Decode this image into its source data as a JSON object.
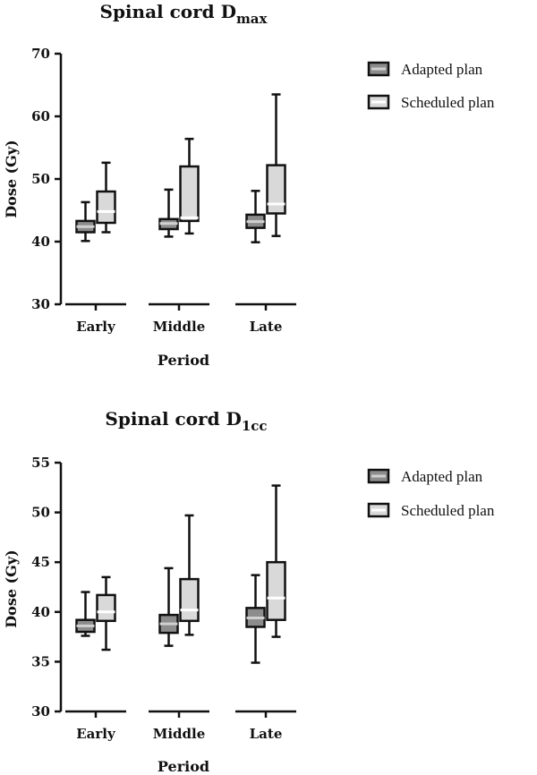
{
  "colors": {
    "adapted_fill": "#8c8c8c",
    "scheduled_fill": "#d9d9d9",
    "stroke": "#111111"
  },
  "chart_data": [
    {
      "type": "box",
      "title": "Spinal cord D",
      "title_sub": "max",
      "xlabel": "Period",
      "ylabel": "Dose (Gy)",
      "ylim": [
        30,
        70
      ],
      "yticks": [
        "30",
        "40",
        "50",
        "60",
        "70"
      ],
      "categories": [
        "Early",
        "Middle",
        "Late"
      ],
      "series": [
        {
          "name": "Adapted plan",
          "boxes": [
            {
              "min": 40.1,
              "q1": 41.5,
              "median": 42.4,
              "q3": 43.3,
              "max": 46.3
            },
            {
              "min": 40.8,
              "q1": 42.0,
              "median": 42.9,
              "q3": 43.6,
              "max": 48.3
            },
            {
              "min": 39.9,
              "q1": 42.2,
              "median": 43.2,
              "q3": 44.3,
              "max": 48.1
            }
          ]
        },
        {
          "name": "Scheduled plan",
          "boxes": [
            {
              "min": 41.5,
              "q1": 43.0,
              "median": 44.8,
              "q3": 48.0,
              "max": 52.6
            },
            {
              "min": 41.3,
              "q1": 43.3,
              "median": 43.8,
              "q3": 52.0,
              "max": 56.4
            },
            {
              "min": 40.9,
              "q1": 44.5,
              "median": 46.0,
              "q3": 52.2,
              "max": 63.5
            }
          ]
        }
      ]
    },
    {
      "type": "box",
      "title": "Spinal cord D",
      "title_sub": "1cc",
      "xlabel": "Period",
      "ylabel": "Dose (Gy)",
      "ylim": [
        30,
        55
      ],
      "yticks": [
        "30",
        "35",
        "40",
        "45",
        "50",
        "55"
      ],
      "categories": [
        "Early",
        "Middle",
        "Late"
      ],
      "series": [
        {
          "name": "Adapted plan",
          "boxes": [
            {
              "min": 37.6,
              "q1": 38.0,
              "median": 38.6,
              "q3": 39.2,
              "max": 42.0
            },
            {
              "min": 36.6,
              "q1": 37.9,
              "median": 38.8,
              "q3": 39.7,
              "max": 44.4
            },
            {
              "min": 34.9,
              "q1": 38.5,
              "median": 39.4,
              "q3": 40.4,
              "max": 43.7
            }
          ]
        },
        {
          "name": "Scheduled plan",
          "boxes": [
            {
              "min": 36.2,
              "q1": 39.1,
              "median": 40.0,
              "q3": 41.7,
              "max": 43.5
            },
            {
              "min": 37.7,
              "q1": 39.1,
              "median": 40.2,
              "q3": 43.3,
              "max": 49.7
            },
            {
              "min": 37.5,
              "q1": 39.2,
              "median": 41.4,
              "q3": 45.0,
              "max": 52.7
            }
          ]
        }
      ]
    }
  ]
}
